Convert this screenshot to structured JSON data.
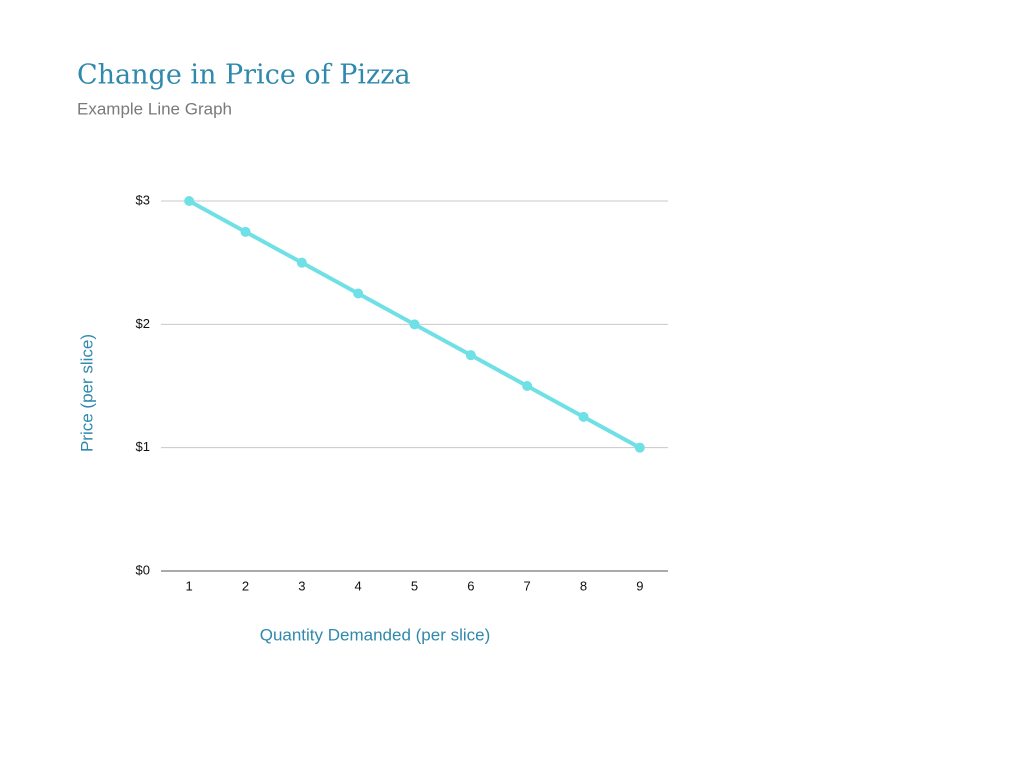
{
  "chart_data": {
    "type": "line",
    "title": "Change in Price of Pizza",
    "subtitle": "Example Line Graph",
    "x_label": "Quantity Demanded (per slice)",
    "y_label": "Price (per slice)",
    "categories": [
      "1",
      "2",
      "3",
      "4",
      "5",
      "6",
      "7",
      "8",
      "9"
    ],
    "values": [
      3,
      2.75,
      2.5,
      2.25,
      2,
      1.75,
      1.5,
      1.25,
      1
    ],
    "color": "#6fe0e6",
    "ylim": [
      0,
      3
    ],
    "yticks": [
      {
        "value": 0,
        "label": "$0"
      },
      {
        "value": 1,
        "label": "$1"
      },
      {
        "value": 2,
        "label": "$2"
      },
      {
        "value": 3,
        "label": "$3"
      }
    ],
    "grid": true
  }
}
